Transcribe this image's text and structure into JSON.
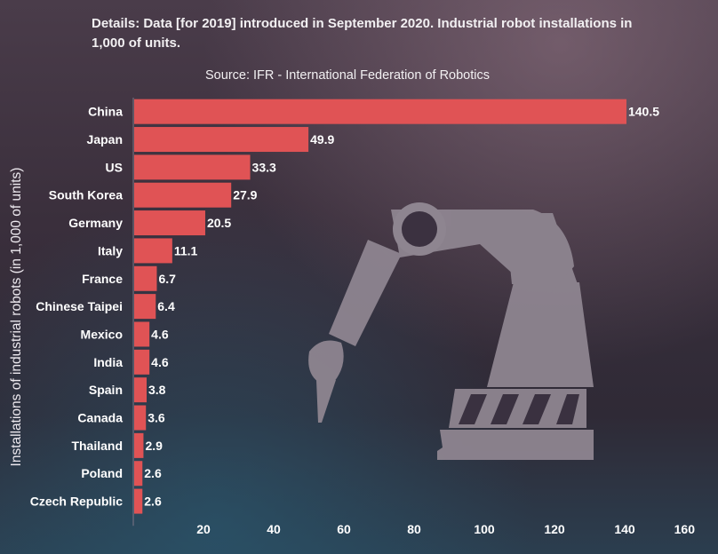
{
  "header": {
    "details": "Details: Data [for 2019] introduced in September 2020. Industrial robot installations in 1,000 of units.",
    "source": "Source: IFR - International Federation of Robotics"
  },
  "colors": {
    "bar": "#e05355",
    "robot": "#8e8590"
  },
  "icons": {
    "background": "robot-arm-icon"
  },
  "chart_data": {
    "type": "bar",
    "orientation": "horizontal",
    "title": "",
    "xlabel": "",
    "ylabel": "Installations of industrial robots (in 1,000 of units)",
    "categories": [
      "China",
      "Japan",
      "US",
      "South Korea",
      "Germany",
      "Italy",
      "France",
      "Chinese Taipei",
      "Mexico",
      "India",
      "Spain",
      "Canada",
      "Thailand",
      "Poland",
      "Czech Republic"
    ],
    "values": [
      140.5,
      49.9,
      33.3,
      27.9,
      20.5,
      11.1,
      6.7,
      6.4,
      4.6,
      4.6,
      3.8,
      3.6,
      2.9,
      2.6,
      2.6
    ],
    "value_labels": [
      "140.5",
      "49.9",
      "33.3",
      "27.9",
      "20.5",
      "11.1",
      "6.7",
      "6.4",
      "4.6",
      "4.6",
      "3.8",
      "3.6",
      "2.9",
      "2.6",
      "2.6"
    ],
    "xlim": [
      0,
      160
    ],
    "xticks": [
      20,
      40,
      60,
      80,
      100,
      120,
      140,
      160
    ],
    "grid": false,
    "legend": "none"
  }
}
